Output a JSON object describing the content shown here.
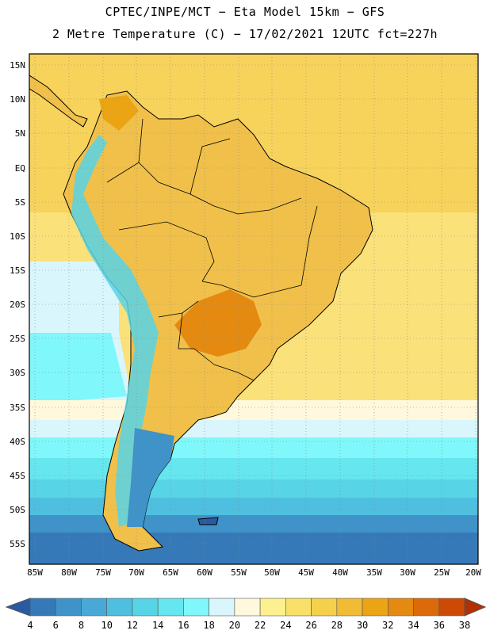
{
  "title": {
    "line1": "CPTEC/INPE/MCT −  Eta Model 15km − GFS",
    "line2": "2 Metre Temperature (C) − 17/02/2021 12UTC fct=227h"
  },
  "map": {
    "lat_labels": [
      "15N",
      "10N",
      "5N",
      "EQ",
      "5S",
      "10S",
      "15S",
      "20S",
      "25S",
      "30S",
      "35S",
      "40S",
      "45S",
      "50S",
      "55S"
    ],
    "lon_labels": [
      "85W",
      "80W",
      "75W",
      "70W",
      "65W",
      "60W",
      "55W",
      "50W",
      "45W",
      "40W",
      "35W",
      "30W",
      "25W",
      "20W"
    ],
    "land_color": "#f0c04a",
    "ocean_tropical_color": "#fbe17a"
  },
  "colorbar": {
    "labels": [
      "4",
      "6",
      "8",
      "10",
      "12",
      "14",
      "16",
      "18",
      "20",
      "22",
      "24",
      "26",
      "28",
      "30",
      "32",
      "34",
      "36",
      "38"
    ],
    "colors": [
      "#2a5aa3",
      "#3579b8",
      "#3f93c8",
      "#48a9d6",
      "#4fbfdf",
      "#57d4e6",
      "#66e6ef",
      "#7ff7fb",
      "#d9f6fc",
      "#fff8dc",
      "#fdf08e",
      "#f9e169",
      "#f5d04a",
      "#f1bb33",
      "#eba414",
      "#e48a10",
      "#dd6a0a",
      "#cc4a06",
      "#b33003"
    ]
  }
}
